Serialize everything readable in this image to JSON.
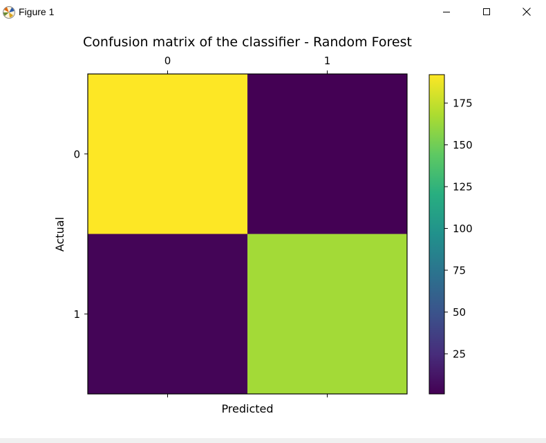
{
  "window": {
    "title": "Figure 1",
    "buttons": [
      "minimize",
      "maximize",
      "close"
    ],
    "icons": {
      "app": "matplotlib-icon",
      "minimize": "minimize-icon",
      "maximize": "maximize-icon",
      "close": "close-icon"
    }
  },
  "chart_data": {
    "type": "heatmap",
    "title": "Confusion matrix of the classifier - Random Forest",
    "xlabel": "Predicted",
    "ylabel": "Actual",
    "x_categories": [
      "0",
      "1"
    ],
    "y_categories": [
      "0",
      "1"
    ],
    "xticks_position": "top",
    "values": [
      [
        192,
        1
      ],
      [
        3,
        165
      ]
    ],
    "colormap": "viridis",
    "colorbar": {
      "range": [
        1,
        192
      ],
      "ticks": [
        25,
        50,
        75,
        100,
        125,
        150,
        175
      ]
    },
    "grid": false
  }
}
